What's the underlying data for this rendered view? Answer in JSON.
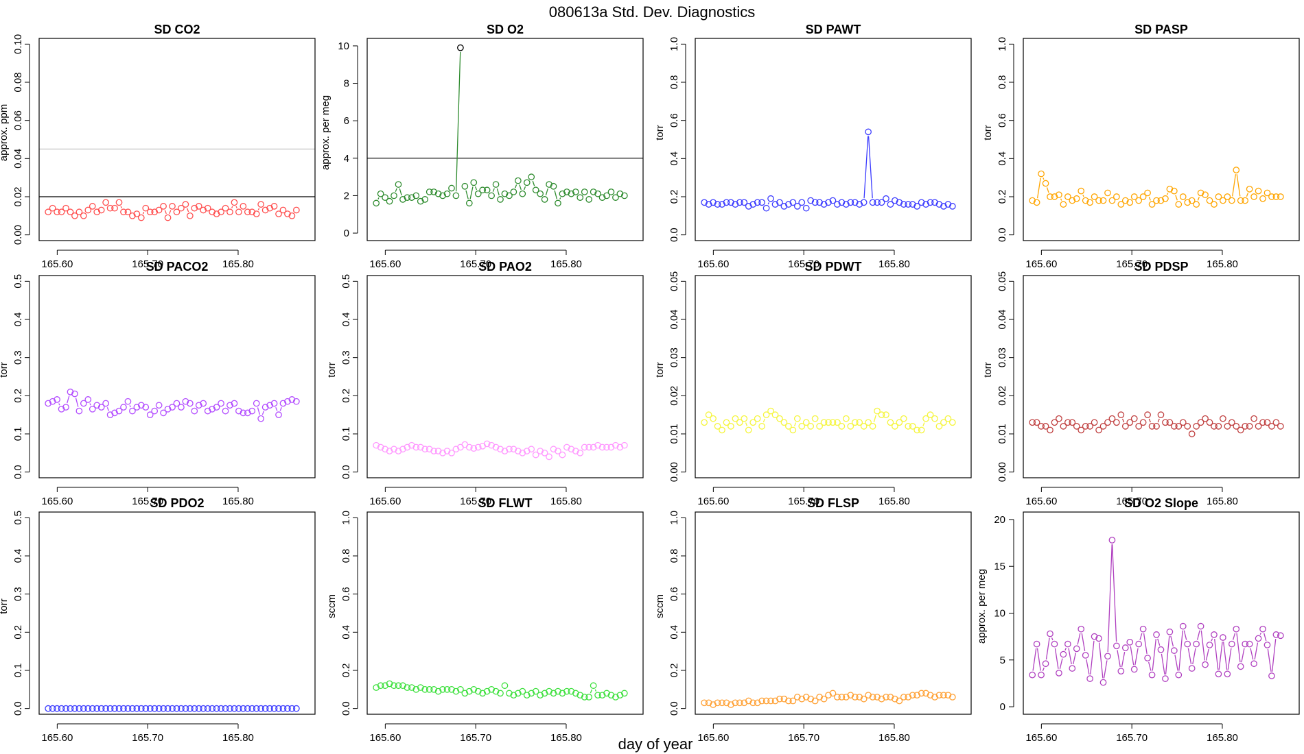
{
  "figure": {
    "title": "080613a   Std. Dev. Diagnostics",
    "xlabel": "day of year"
  },
  "chart_data": [
    {
      "type": "scatter",
      "title": "SD CO2",
      "xlabel": "",
      "ylabel": "approx. ppm",
      "color": "#ff4d4d",
      "xlim": [
        165.58,
        165.885
      ],
      "xticks": [
        165.6,
        165.7,
        165.8
      ],
      "xtick_labels": [
        "165.60",
        "165.70",
        "165.80"
      ],
      "ylim": [
        -0.003,
        0.103
      ],
      "yticks": [
        0,
        0.02,
        0.04,
        0.06,
        0.08,
        0.1
      ],
      "ytick_labels": [
        "0.00",
        "0.02",
        "0.04",
        "0.06",
        "0.08",
        "0.10"
      ],
      "ytick_rotate": true,
      "hlines": [
        {
          "y": 0.02,
          "color": "#000000"
        },
        {
          "y": 0.045,
          "color": "#bbbbbb"
        }
      ],
      "x_start": 165.59,
      "x_step": 0.0049,
      "gaps": [
        47
      ],
      "values": [
        0.012,
        0.014,
        0.012,
        0.012,
        0.014,
        0.012,
        0.01,
        0.012,
        0.01,
        0.013,
        0.015,
        0.012,
        0.013,
        0.017,
        0.014,
        0.014,
        0.017,
        0.012,
        0.012,
        0.01,
        0.011,
        0.009,
        0.014,
        0.012,
        0.012,
        0.013,
        0.015,
        0.009,
        0.015,
        0.012,
        0.014,
        0.016,
        0.01,
        0.014,
        0.015,
        0.013,
        0.014,
        0.012,
        0.011,
        0.012,
        0.014,
        0.012,
        0.017,
        0.012,
        0.015,
        0.012,
        0.012,
        0.011,
        0.016,
        0.013,
        0.014,
        0.015,
        0.011,
        0.013,
        0.011,
        0.01,
        0.013
      ]
    },
    {
      "type": "scatter",
      "title": "SD O2",
      "xlabel": "",
      "ylabel": "approx. per meg",
      "color": "#2e8b2e",
      "xlim": [
        165.58,
        165.885
      ],
      "xticks": [
        165.6,
        165.7,
        165.8
      ],
      "xtick_labels": [
        "165.60",
        "165.70",
        "165.80"
      ],
      "ylim": [
        -0.4,
        10.4
      ],
      "yticks": [
        0,
        2,
        4,
        6,
        8,
        10
      ],
      "ytick_labels": [
        "0",
        "2",
        "4",
        "6",
        "8",
        "10"
      ],
      "ytick_rotate": false,
      "hlines": [
        {
          "y": 4,
          "color": "#000000"
        }
      ],
      "x_start": 165.59,
      "x_step": 0.0049,
      "gaps": [
        20
      ],
      "spike": {
        "index": 19,
        "value": 9.9,
        "color": "#000000"
      },
      "values": [
        1.6,
        2.1,
        1.9,
        1.7,
        2.0,
        2.6,
        1.8,
        1.9,
        1.9,
        2.0,
        1.7,
        1.8,
        2.2,
        2.2,
        2.1,
        2.0,
        2.1,
        2.4,
        2.0,
        9.9,
        2.5,
        1.6,
        2.7,
        2.1,
        2.3,
        2.3,
        2.0,
        2.6,
        1.8,
        2.1,
        2.0,
        2.2,
        2.8,
        2.1,
        2.7,
        3.0,
        2.3,
        2.1,
        1.8,
        2.6,
        2.5,
        1.6,
        2.1,
        2.2,
        2.1,
        2.2,
        1.9,
        2.2,
        1.8,
        2.2,
        2.1,
        1.9,
        2.0,
        2.2,
        1.9,
        2.1,
        2.0
      ]
    },
    {
      "type": "scatter",
      "title": "SD PAWT",
      "xlabel": "",
      "ylabel": "torr",
      "color": "#3b3bff",
      "xlim": [
        165.58,
        165.885
      ],
      "xticks": [
        165.6,
        165.7,
        165.8
      ],
      "xtick_labels": [
        "165.60",
        "165.70",
        "165.80"
      ],
      "ylim": [
        -0.03,
        1.03
      ],
      "yticks": [
        0,
        0.2,
        0.4,
        0.6,
        0.8,
        1.0
      ],
      "ytick_labels": [
        "0.0",
        "0.2",
        "0.4",
        "0.6",
        "0.8",
        "1.0"
      ],
      "ytick_rotate": true,
      "hlines": [],
      "x_start": 165.59,
      "x_step": 0.0049,
      "gaps": [
        44
      ],
      "values": [
        0.17,
        0.16,
        0.17,
        0.16,
        0.16,
        0.17,
        0.17,
        0.16,
        0.17,
        0.17,
        0.15,
        0.16,
        0.17,
        0.17,
        0.14,
        0.19,
        0.16,
        0.17,
        0.15,
        0.16,
        0.17,
        0.15,
        0.17,
        0.14,
        0.18,
        0.17,
        0.17,
        0.16,
        0.17,
        0.18,
        0.16,
        0.17,
        0.16,
        0.17,
        0.17,
        0.16,
        0.17,
        0.54,
        0.17,
        0.17,
        0.17,
        0.19,
        0.16,
        0.18,
        0.17,
        0.16,
        0.16,
        0.16,
        0.15,
        0.17,
        0.16,
        0.17,
        0.17,
        0.16,
        0.15,
        0.16,
        0.15
      ]
    },
    {
      "type": "scatter",
      "title": "SD PASP",
      "xlabel": "",
      "ylabel": "torr",
      "color": "#ffa500",
      "xlim": [
        165.58,
        165.885
      ],
      "xticks": [
        165.6,
        165.7,
        165.8
      ],
      "xtick_labels": [
        "165.60",
        "165.70",
        "165.80"
      ],
      "ylim": [
        -0.03,
        1.03
      ],
      "yticks": [
        0,
        0.2,
        0.4,
        0.6,
        0.8,
        1.0
      ],
      "ytick_labels": [
        "0.0",
        "0.2",
        "0.4",
        "0.6",
        "0.8",
        "1.0"
      ],
      "ytick_rotate": true,
      "hlines": [],
      "x_start": 165.59,
      "x_step": 0.0049,
      "gaps": [],
      "values": [
        0.18,
        0.17,
        0.32,
        0.27,
        0.2,
        0.2,
        0.21,
        0.16,
        0.2,
        0.18,
        0.19,
        0.23,
        0.18,
        0.17,
        0.2,
        0.18,
        0.18,
        0.22,
        0.18,
        0.2,
        0.16,
        0.18,
        0.17,
        0.2,
        0.18,
        0.2,
        0.22,
        0.16,
        0.18,
        0.18,
        0.19,
        0.24,
        0.23,
        0.16,
        0.2,
        0.17,
        0.18,
        0.16,
        0.22,
        0.21,
        0.18,
        0.16,
        0.2,
        0.18,
        0.2,
        0.18,
        0.34,
        0.18,
        0.18,
        0.24,
        0.2,
        0.23,
        0.19,
        0.22,
        0.2,
        0.2,
        0.2
      ]
    },
    {
      "type": "scatter",
      "title": "SD PACO2",
      "xlabel": "",
      "ylabel": "torr",
      "color": "#b24bff",
      "xlim": [
        165.58,
        165.885
      ],
      "xticks": [
        165.6,
        165.7,
        165.8
      ],
      "xtick_labels": [
        "165.60",
        "165.70",
        "165.80"
      ],
      "ylim": [
        -0.015,
        0.515
      ],
      "yticks": [
        0,
        0.1,
        0.2,
        0.3,
        0.4,
        0.5
      ],
      "ytick_labels": [
        "0.0",
        "0.1",
        "0.2",
        "0.3",
        "0.4",
        "0.5"
      ],
      "ytick_rotate": true,
      "hlines": [],
      "x_start": 165.59,
      "x_step": 0.0049,
      "gaps": [
        46
      ],
      "values": [
        0.18,
        0.185,
        0.19,
        0.165,
        0.17,
        0.21,
        0.205,
        0.16,
        0.18,
        0.19,
        0.165,
        0.175,
        0.17,
        0.18,
        0.15,
        0.155,
        0.16,
        0.17,
        0.185,
        0.16,
        0.17,
        0.175,
        0.17,
        0.15,
        0.16,
        0.175,
        0.155,
        0.165,
        0.17,
        0.18,
        0.17,
        0.185,
        0.18,
        0.16,
        0.175,
        0.18,
        0.16,
        0.165,
        0.17,
        0.18,
        0.16,
        0.175,
        0.18,
        0.16,
        0.155,
        0.155,
        0.16,
        0.18,
        0.14,
        0.17,
        0.175,
        0.18,
        0.15,
        0.18,
        0.185,
        0.19,
        0.185
      ]
    },
    {
      "type": "scatter",
      "title": "SD PAO2",
      "xlabel": "",
      "ylabel": "torr",
      "color": "#ff99ff",
      "xlim": [
        165.58,
        165.885
      ],
      "xticks": [
        165.6,
        165.7,
        165.8
      ],
      "xtick_labels": [
        "165.60",
        "165.70",
        "165.80"
      ],
      "ylim": [
        -0.015,
        0.515
      ],
      "yticks": [
        0,
        0.1,
        0.2,
        0.3,
        0.4,
        0.5
      ],
      "ytick_labels": [
        "0.0",
        "0.1",
        "0.2",
        "0.3",
        "0.4",
        "0.5"
      ],
      "ytick_rotate": true,
      "hlines": [],
      "x_start": 165.59,
      "x_step": 0.0049,
      "gaps": [],
      "values": [
        0.07,
        0.065,
        0.06,
        0.055,
        0.06,
        0.055,
        0.06,
        0.065,
        0.07,
        0.065,
        0.065,
        0.06,
        0.06,
        0.055,
        0.055,
        0.05,
        0.055,
        0.05,
        0.06,
        0.065,
        0.072,
        0.065,
        0.062,
        0.065,
        0.068,
        0.074,
        0.07,
        0.065,
        0.06,
        0.055,
        0.06,
        0.06,
        0.055,
        0.05,
        0.055,
        0.06,
        0.045,
        0.055,
        0.05,
        0.04,
        0.06,
        0.055,
        0.045,
        0.065,
        0.06,
        0.055,
        0.05,
        0.065,
        0.065,
        0.065,
        0.07,
        0.065,
        0.065,
        0.065,
        0.07,
        0.065,
        0.07
      ]
    },
    {
      "type": "scatter",
      "title": "SD PDWT",
      "xlabel": "",
      "ylabel": "torr",
      "color": "#f5f53d",
      "xlim": [
        165.58,
        165.885
      ],
      "xticks": [
        165.6,
        165.7,
        165.8
      ],
      "xtick_labels": [
        "165.60",
        "165.70",
        "165.80"
      ],
      "ylim": [
        -0.0015,
        0.0515
      ],
      "yticks": [
        0,
        0.01,
        0.02,
        0.03,
        0.04,
        0.05
      ],
      "ytick_labels": [
        "0.00",
        "0.01",
        "0.02",
        "0.03",
        "0.04",
        "0.05"
      ],
      "ytick_rotate": true,
      "hlines": [],
      "x_start": 165.59,
      "x_step": 0.0049,
      "gaps": [],
      "values": [
        0.013,
        0.015,
        0.014,
        0.012,
        0.011,
        0.013,
        0.012,
        0.014,
        0.013,
        0.014,
        0.011,
        0.013,
        0.014,
        0.012,
        0.015,
        0.016,
        0.015,
        0.014,
        0.013,
        0.012,
        0.011,
        0.014,
        0.012,
        0.013,
        0.012,
        0.014,
        0.012,
        0.013,
        0.013,
        0.013,
        0.013,
        0.012,
        0.014,
        0.012,
        0.013,
        0.013,
        0.012,
        0.013,
        0.012,
        0.016,
        0.015,
        0.015,
        0.013,
        0.012,
        0.013,
        0.014,
        0.012,
        0.012,
        0.011,
        0.011,
        0.014,
        0.015,
        0.014,
        0.012,
        0.013,
        0.014,
        0.013
      ]
    },
    {
      "type": "scatter",
      "title": "SD PDSP",
      "xlabel": "",
      "ylabel": "torr",
      "color": "#c04040",
      "xlim": [
        165.58,
        165.885
      ],
      "xticks": [
        165.6,
        165.7,
        165.8
      ],
      "xtick_labels": [
        "165.60",
        "165.70",
        "165.80"
      ],
      "ylim": [
        -0.0015,
        0.0515
      ],
      "yticks": [
        0,
        0.01,
        0.02,
        0.03,
        0.04,
        0.05
      ],
      "ytick_labels": [
        "0.00",
        "0.01",
        "0.02",
        "0.03",
        "0.04",
        "0.05"
      ],
      "ytick_rotate": true,
      "hlines": [],
      "x_start": 165.59,
      "x_step": 0.0049,
      "gaps": [],
      "values": [
        0.013,
        0.013,
        0.012,
        0.012,
        0.011,
        0.013,
        0.014,
        0.012,
        0.013,
        0.013,
        0.012,
        0.011,
        0.012,
        0.012,
        0.013,
        0.011,
        0.012,
        0.013,
        0.014,
        0.013,
        0.015,
        0.012,
        0.013,
        0.014,
        0.012,
        0.013,
        0.015,
        0.012,
        0.012,
        0.015,
        0.013,
        0.013,
        0.012,
        0.012,
        0.013,
        0.012,
        0.01,
        0.012,
        0.013,
        0.014,
        0.013,
        0.012,
        0.012,
        0.014,
        0.012,
        0.013,
        0.012,
        0.011,
        0.012,
        0.012,
        0.014,
        0.012,
        0.013,
        0.013,
        0.012,
        0.013,
        0.012
      ]
    },
    {
      "type": "scatter",
      "title": "SD PDO2",
      "xlabel": "",
      "ylabel": "torr",
      "color": "#3b3bff",
      "xlim": [
        165.58,
        165.885
      ],
      "xticks": [
        165.6,
        165.7,
        165.8
      ],
      "xtick_labels": [
        "165.60",
        "165.70",
        "165.80"
      ],
      "ylim": [
        -0.015,
        0.515
      ],
      "yticks": [
        0,
        0.1,
        0.2,
        0.3,
        0.4,
        0.5
      ],
      "ytick_labels": [
        "0.0",
        "0.1",
        "0.2",
        "0.3",
        "0.4",
        "0.5"
      ],
      "ytick_rotate": true,
      "hlines": [],
      "x_start": 165.59,
      "x_step": 0.0049,
      "gaps": [
        47
      ],
      "values": [
        0,
        0,
        0,
        0,
        0,
        0,
        0,
        0,
        0,
        0,
        0,
        0,
        0,
        0,
        0,
        0,
        0,
        0,
        0,
        0,
        0,
        0,
        0,
        0,
        0,
        0,
        0,
        0,
        0,
        0,
        0,
        0,
        0,
        0,
        0,
        0,
        0,
        0,
        0,
        0,
        0,
        0,
        0,
        0,
        0,
        0,
        0,
        0,
        0,
        0,
        0,
        0,
        0,
        0,
        0,
        0,
        0
      ]
    },
    {
      "type": "scatter",
      "title": "SD FLWT",
      "xlabel": "",
      "ylabel": "sccm",
      "color": "#3ce03c",
      "xlim": [
        165.58,
        165.885
      ],
      "xticks": [
        165.6,
        165.7,
        165.8
      ],
      "xtick_labels": [
        "165.60",
        "165.70",
        "165.80"
      ],
      "ylim": [
        -0.03,
        1.03
      ],
      "yticks": [
        0,
        0.2,
        0.4,
        0.6,
        0.8,
        1.0
      ],
      "ytick_labels": [
        "0.0",
        "0.2",
        "0.4",
        "0.6",
        "0.8",
        "1.0"
      ],
      "ytick_rotate": true,
      "hlines": [],
      "x_start": 165.59,
      "x_step": 0.0049,
      "gaps": [],
      "values": [
        0.11,
        0.12,
        0.12,
        0.13,
        0.12,
        0.12,
        0.12,
        0.11,
        0.11,
        0.1,
        0.11,
        0.1,
        0.1,
        0.1,
        0.09,
        0.1,
        0.1,
        0.1,
        0.09,
        0.1,
        0.08,
        0.09,
        0.1,
        0.09,
        0.08,
        0.09,
        0.1,
        0.09,
        0.08,
        0.12,
        0.08,
        0.07,
        0.08,
        0.09,
        0.07,
        0.08,
        0.09,
        0.07,
        0.08,
        0.09,
        0.08,
        0.09,
        0.08,
        0.09,
        0.09,
        0.08,
        0.07,
        0.06,
        0.06,
        0.12,
        0.07,
        0.07,
        0.08,
        0.07,
        0.06,
        0.07,
        0.08
      ]
    },
    {
      "type": "scatter",
      "title": "SD FLSP",
      "xlabel": "",
      "ylabel": "sccm",
      "color": "#ffa033",
      "xlim": [
        165.58,
        165.885
      ],
      "xticks": [
        165.6,
        165.7,
        165.8
      ],
      "xtick_labels": [
        "165.60",
        "165.70",
        "165.80"
      ],
      "ylim": [
        -0.03,
        1.03
      ],
      "yticks": [
        0,
        0.2,
        0.4,
        0.6,
        0.8,
        1.0
      ],
      "ytick_labels": [
        "0.0",
        "0.2",
        "0.4",
        "0.6",
        "0.8",
        "1.0"
      ],
      "ytick_rotate": true,
      "hlines": [],
      "x_start": 165.59,
      "x_step": 0.0049,
      "gaps": [],
      "values": [
        0.03,
        0.03,
        0.02,
        0.03,
        0.03,
        0.03,
        0.02,
        0.03,
        0.03,
        0.03,
        0.04,
        0.03,
        0.03,
        0.04,
        0.04,
        0.04,
        0.04,
        0.05,
        0.05,
        0.04,
        0.04,
        0.06,
        0.05,
        0.06,
        0.05,
        0.04,
        0.06,
        0.05,
        0.07,
        0.08,
        0.06,
        0.06,
        0.06,
        0.07,
        0.06,
        0.06,
        0.05,
        0.07,
        0.06,
        0.06,
        0.05,
        0.06,
        0.06,
        0.05,
        0.04,
        0.06,
        0.06,
        0.07,
        0.07,
        0.08,
        0.08,
        0.07,
        0.06,
        0.07,
        0.07,
        0.07,
        0.06
      ]
    },
    {
      "type": "scatter",
      "title": "SD O2 Slope",
      "xlabel": "",
      "ylabel": "approx. per meg",
      "color": "#b040c0",
      "xlim": [
        165.58,
        165.885
      ],
      "xticks": [
        165.6,
        165.7,
        165.8
      ],
      "xtick_labels": [
        "165.60",
        "165.70",
        "165.80"
      ],
      "ylim": [
        -0.8,
        20.8
      ],
      "yticks": [
        0,
        5,
        10,
        15,
        20
      ],
      "ytick_labels": [
        "0",
        "5",
        "10",
        "15",
        "20"
      ],
      "ytick_rotate": false,
      "hlines": [],
      "x_start": 165.59,
      "x_step": 0.0049,
      "gaps": [],
      "values": [
        3.4,
        6.7,
        3.4,
        4.6,
        7.8,
        6.7,
        3.6,
        5.6,
        6.7,
        4.1,
        6.2,
        8.3,
        5.5,
        3.0,
        7.5,
        7.3,
        2.6,
        5.4,
        17.8,
        6.5,
        3.8,
        6.3,
        6.9,
        4.0,
        6.7,
        8.3,
        5.2,
        3.4,
        7.7,
        6.1,
        3.0,
        8.0,
        6.0,
        3.4,
        8.6,
        6.7,
        4.1,
        6.7,
        8.6,
        4.5,
        6.6,
        7.7,
        3.5,
        7.4,
        3.5,
        6.7,
        8.3,
        4.3,
        6.7,
        6.7,
        4.6,
        7.3,
        8.3,
        6.6,
        3.3,
        7.7,
        7.6
      ]
    }
  ]
}
